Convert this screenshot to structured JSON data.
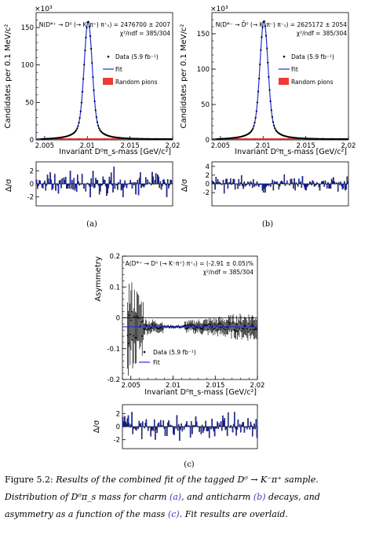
{
  "figure": {
    "panels": [
      {
        "id": "a",
        "sublabel": "(a)",
        "main": {
          "ylabel": "Candidates per 0.1 MeV/c²",
          "xlabel": "Invariant D⁰π_s-mass [GeV/c²]",
          "yscale_label": "×10³",
          "result_line1": "N(D*⁺ → D⁰ (→ K⁻π⁺) π⁺ₛ) = 2476700 ± 2007",
          "result_line2": "χ²/ndf = 385/304",
          "legend": [
            {
              "label": "Data (5.9 fb⁻¹)",
              "type": "marker"
            },
            {
              "label": "Fit",
              "type": "line"
            },
            {
              "label": "Random pions",
              "type": "box"
            }
          ],
          "yticks": [
            "0",
            "50",
            "100",
            "150"
          ],
          "xticks": [
            "2.005",
            "2.01",
            "2.015",
            "2.02"
          ]
        },
        "resid": {
          "ylabel": "Δ/σ",
          "yticks": [
            "2",
            "0",
            "-2"
          ]
        }
      },
      {
        "id": "b",
        "sublabel": "(b)",
        "main": {
          "ylabel": "Candidates per 0.1 MeV/c²",
          "xlabel": "Invariant D⁰π_s-mass [GeV/c²]",
          "yscale_label": "×10³",
          "result_line1": "N(D*⁻ → D̄⁰ (→ K⁺π⁻) π⁻ₛ) = 2625172 ± 2054",
          "result_line2": "χ²/ndf = 385/304",
          "legend": [
            {
              "label": "Data (5.9 fb⁻¹)",
              "type": "marker"
            },
            {
              "label": "Fit",
              "type": "line"
            },
            {
              "label": "Random pions",
              "type": "box"
            }
          ],
          "yticks": [
            "0",
            "50",
            "100",
            "150"
          ],
          "xticks": [
            "2.005",
            "2.01",
            "2.015",
            "2.02"
          ]
        },
        "resid": {
          "ylabel": "Δ/σ",
          "yticks": [
            "4",
            "2",
            "0",
            "-2"
          ]
        }
      },
      {
        "id": "c",
        "sublabel": "(c)",
        "main": {
          "ylabel": "Asymmetry",
          "xlabel": "Invariant D⁰π_s-mass [GeV/c²]",
          "result_line1": "A(D*⁺ → D⁰ (→ K⁻π⁺) π⁺ₛ) = (-2.91 ± 0.05)%",
          "result_line2": "χ²/ndf = 385/304",
          "legend": [
            {
              "label": "Data (5.9 fb⁻¹)",
              "type": "marker"
            },
            {
              "label": "Fit",
              "type": "line"
            }
          ],
          "yticks": [
            "0.2",
            "0.1",
            "0",
            "-0.1",
            "-0.2"
          ],
          "xticks": [
            "2.005",
            "2.01",
            "2.015",
            "2.02"
          ]
        },
        "resid": {
          "ylabel": "Δ/σ",
          "yticks": [
            "2",
            "0",
            "-2"
          ]
        }
      }
    ]
  },
  "caption": {
    "label": "Figure 5.2:",
    "part1": "Results of the combined fit of the tagged D⁰ → K⁻π⁺ sample. Distribution of D⁰π_s mass for charm ",
    "ref_a": "(a)",
    "part2": ", and anticharm ",
    "ref_b": "(b)",
    "part3": " decays, and asymmetry as a function of the mass ",
    "ref_c": "(c)",
    "part4": ". Fit results are overlaid."
  },
  "chart_data": [
    {
      "type": "scatter",
      "panel": "a",
      "xlabel": "Invariant D⁰π_s-mass [GeV/c²]",
      "ylabel": "Candidates per 0.1 MeV/c²",
      "xlim": [
        2.004,
        2.02
      ],
      "ylim": [
        0,
        170
      ],
      "y_unit_multiplier": 1000,
      "peak_x": 2.0101,
      "peak_y": 158,
      "series": [
        {
          "name": "Data (5.9 fb⁻¹)",
          "x": [
            2.005,
            2.007,
            2.008,
            2.009,
            2.0095,
            2.01,
            2.0101,
            2.0105,
            2.011,
            2.0115,
            2.012,
            2.013,
            2.015,
            2.02
          ],
          "values": [
            0.5,
            2,
            8,
            35,
            75,
            150,
            158,
            120,
            55,
            25,
            12,
            5,
            2,
            1
          ]
        },
        {
          "name": "Fit",
          "style": "line"
        },
        {
          "name": "Random pions",
          "style": "band"
        }
      ]
    },
    {
      "type": "scatter",
      "panel": "b",
      "xlabel": "Invariant D⁰π_s-mass [GeV/c²]",
      "ylabel": "Candidates per 0.1 MeV/c²",
      "xlim": [
        2.004,
        2.02
      ],
      "ylim": [
        0,
        180
      ],
      "y_unit_multiplier": 1000,
      "peak_x": 2.0101,
      "peak_y": 168,
      "series": [
        {
          "name": "Data (5.9 fb⁻¹)",
          "x": [
            2.005,
            2.007,
            2.008,
            2.009,
            2.0095,
            2.01,
            2.0101,
            2.0105,
            2.011,
            2.0115,
            2.012,
            2.013,
            2.015,
            2.02
          ],
          "values": [
            0.5,
            2,
            9,
            38,
            80,
            160,
            168,
            128,
            58,
            27,
            13,
            5,
            2,
            1
          ]
        },
        {
          "name": "Fit",
          "style": "line"
        },
        {
          "name": "Random pions",
          "style": "band"
        }
      ]
    },
    {
      "type": "scatter",
      "panel": "c",
      "xlabel": "Invariant D⁰π_s-mass [GeV/c²]",
      "ylabel": "Asymmetry",
      "xlim": [
        2.004,
        2.02
      ],
      "ylim": [
        -0.2,
        0.2
      ],
      "fit_value": -0.0291,
      "series": [
        {
          "name": "Data (5.9 fb⁻¹)",
          "x": [
            2.005,
            2.007,
            2.009,
            2.011,
            2.013,
            2.015,
            2.017,
            2.02
          ],
          "values": [
            -0.01,
            -0.02,
            -0.03,
            -0.03,
            -0.03,
            -0.03,
            -0.025,
            -0.02
          ]
        },
        {
          "name": "Fit",
          "style": "line",
          "values": [
            -0.0291
          ]
        }
      ]
    }
  ]
}
